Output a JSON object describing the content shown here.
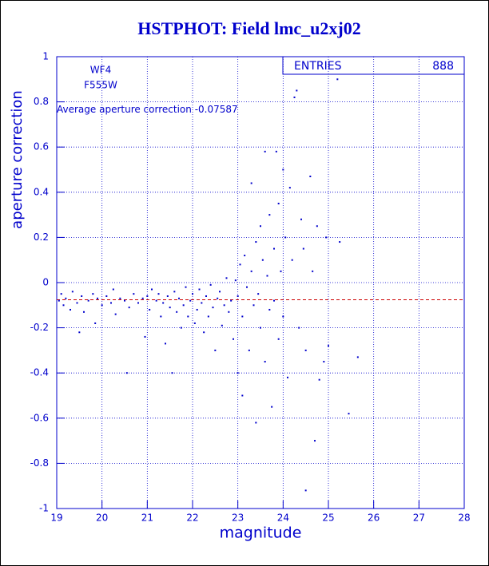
{
  "chart_data": {
    "type": "scatter",
    "title": "HSTPHOT: Field lmc_u2xj02",
    "x_label": "magnitude",
    "y_label": "aperture correction",
    "annotations": [
      "WF4",
      "F555W"
    ],
    "average_label": "Average aperture correction",
    "average": -0.07587,
    "entries_label": "ENTRIES",
    "entries": 888,
    "xlim": [
      19,
      28
    ],
    "ylim": [
      -1,
      1
    ],
    "xticks": [
      19,
      20,
      21,
      22,
      23,
      24,
      25,
      26,
      27,
      28
    ],
    "yticks": [
      -1,
      -0.8,
      -0.6,
      -0.4,
      -0.2,
      0,
      0.2,
      0.4,
      0.6,
      0.8,
      1
    ],
    "grid": true,
    "color": "#0000cc",
    "average_color": "#cc0000",
    "x": [
      19.05,
      19.1,
      19.15,
      19.2,
      19.3,
      19.35,
      19.45,
      19.5,
      19.55,
      19.6,
      19.7,
      19.8,
      19.85,
      19.9,
      20.0,
      20.1,
      20.2,
      20.25,
      20.3,
      20.4,
      20.5,
      20.55,
      20.6,
      20.7,
      20.8,
      20.9,
      20.95,
      21.0,
      21.05,
      21.1,
      21.2,
      21.25,
      21.3,
      21.35,
      21.4,
      21.45,
      21.5,
      21.55,
      21.6,
      21.65,
      21.7,
      21.75,
      21.8,
      21.85,
      21.9,
      21.95,
      22.0,
      22.05,
      22.1,
      22.15,
      22.2,
      22.25,
      22.3,
      22.35,
      22.4,
      22.45,
      22.5,
      22.55,
      22.6,
      22.65,
      22.7,
      22.75,
      22.8,
      22.85,
      22.9,
      22.95,
      23.0,
      23.0,
      23.05,
      23.1,
      23.1,
      23.15,
      23.2,
      23.25,
      23.3,
      23.3,
      23.35,
      23.4,
      23.4,
      23.45,
      23.5,
      23.5,
      23.55,
      23.6,
      23.6,
      23.65,
      23.7,
      23.7,
      23.75,
      23.8,
      23.8,
      23.85,
      23.9,
      23.9,
      23.95,
      24.0,
      24.0,
      24.05,
      24.1,
      24.15,
      24.2,
      24.25,
      24.3,
      24.35,
      24.4,
      24.45,
      24.5,
      24.6,
      24.65,
      24.7,
      24.75,
      24.8,
      24.9,
      24.95,
      25.0,
      25.2,
      25.25,
      25.45,
      25.65,
      24.5
    ],
    "y": [
      -0.08,
      -0.05,
      -0.1,
      -0.07,
      -0.12,
      -0.04,
      -0.09,
      -0.22,
      -0.06,
      -0.13,
      -0.08,
      -0.05,
      -0.18,
      -0.07,
      -0.1,
      -0.06,
      -0.09,
      -0.03,
      -0.14,
      -0.07,
      -0.08,
      -0.4,
      -0.11,
      -0.05,
      -0.09,
      -0.07,
      -0.24,
      -0.06,
      -0.12,
      -0.03,
      -0.08,
      -0.05,
      -0.15,
      -0.09,
      -0.27,
      -0.06,
      -0.11,
      -0.4,
      -0.04,
      -0.13,
      -0.07,
      -0.2,
      -0.1,
      -0.02,
      -0.15,
      -0.08,
      -0.05,
      -0.18,
      -0.12,
      -0.03,
      -0.09,
      -0.22,
      -0.06,
      -0.15,
      -0.01,
      -0.11,
      -0.3,
      -0.07,
      -0.04,
      -0.19,
      -0.1,
      0.02,
      -0.13,
      -0.08,
      -0.25,
      0.01,
      -0.06,
      -0.4,
      0.08,
      -0.15,
      -0.5,
      0.12,
      -0.02,
      -0.3,
      0.44,
      0.05,
      -0.1,
      0.18,
      -0.62,
      -0.05,
      0.25,
      -0.2,
      0.1,
      -0.35,
      0.58,
      0.03,
      -0.12,
      0.3,
      -0.55,
      0.15,
      -0.08,
      0.58,
      0.35,
      -0.25,
      0.05,
      0.5,
      -0.15,
      0.2,
      -0.42,
      0.42,
      0.1,
      0.82,
      0.85,
      -0.2,
      0.28,
      0.15,
      -0.3,
      0.47,
      0.05,
      -0.7,
      0.25,
      -0.43,
      -0.35,
      0.2,
      -0.28,
      0.9,
      0.18,
      -0.58,
      -0.33,
      -0.92
    ]
  }
}
